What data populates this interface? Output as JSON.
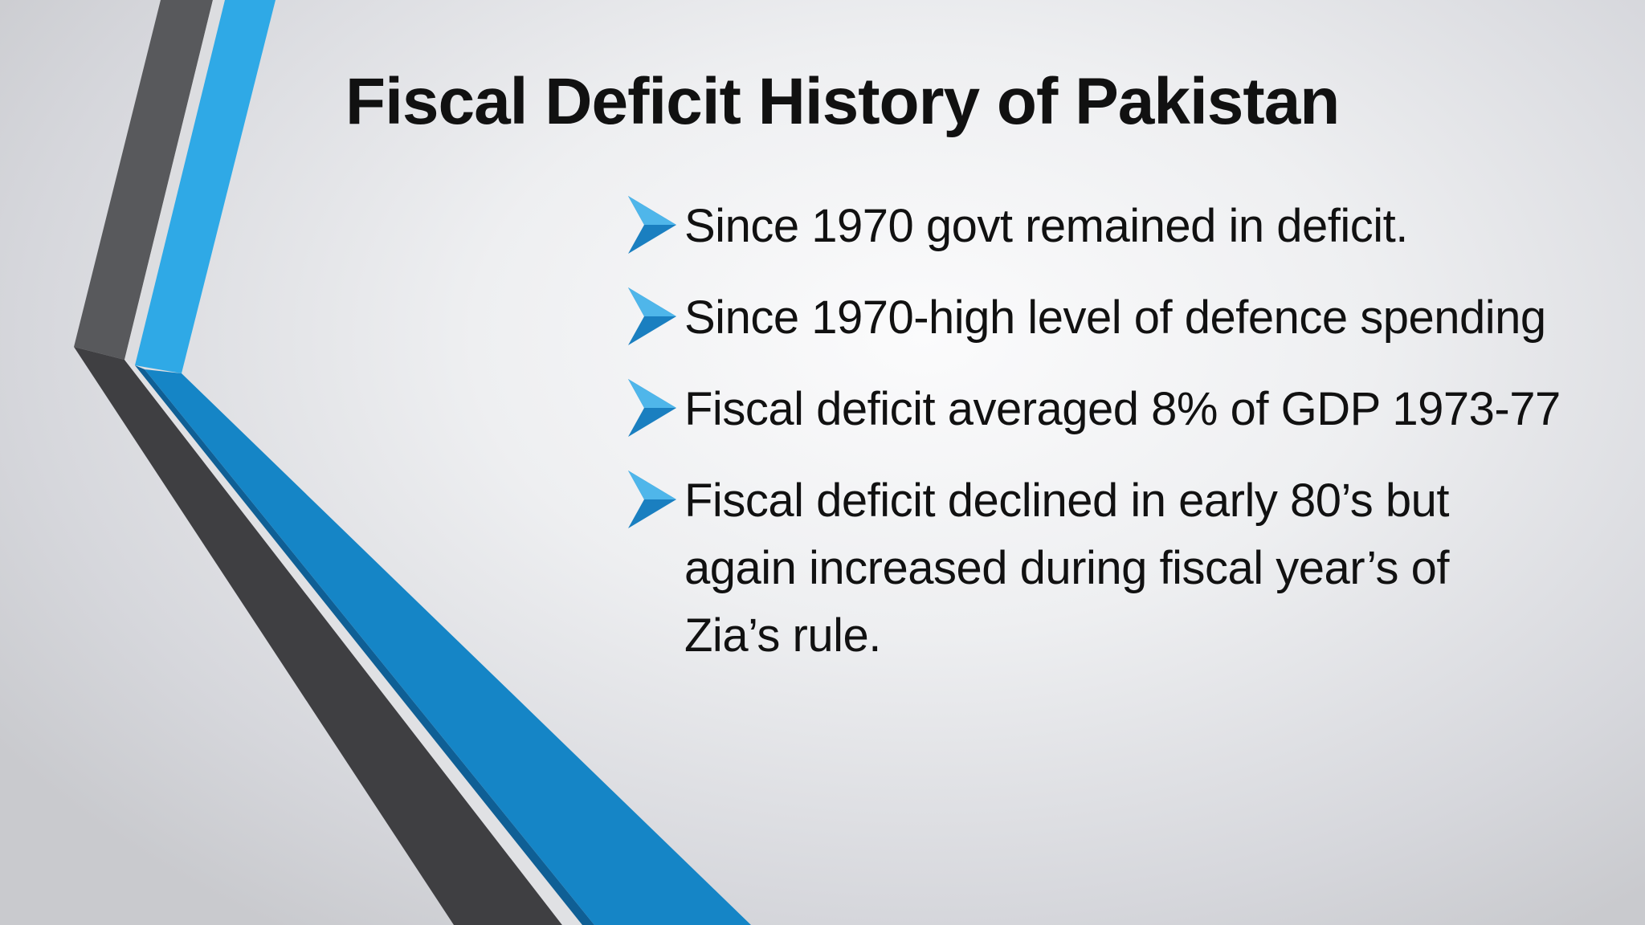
{
  "slide": {
    "title": "Fiscal Deficit History of Pakistan",
    "bullets": [
      {
        "text": "Since 1970 govt remained in deficit."
      },
      {
        "text": "Since 1970-high level of defence spending"
      },
      {
        "text": "Fiscal deficit averaged 8% of GDP 1973-77"
      },
      {
        "text": "Fiscal deficit declined in early 80’s but again increased during fiscal year’s of Zia’s rule."
      }
    ],
    "bullet_icon": "arrow-bullet-icon",
    "colors": {
      "accent_blue": "#2fa9e6",
      "dark_blue": "#1585c6",
      "dark_gray": "#3f3f42",
      "mid_gray": "#5a5b5e",
      "text": "#111111"
    }
  }
}
